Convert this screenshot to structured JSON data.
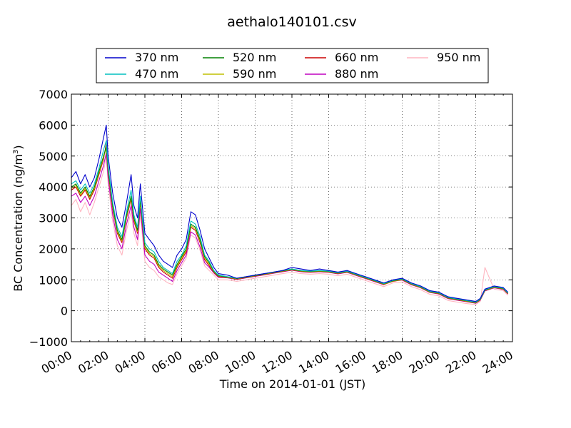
{
  "chart_data": {
    "type": "line",
    "title": "aethalo140101.csv",
    "xlabel": "Time on 2014-01-01 (JST)",
    "ylabel_main": "BC Concentration (ng/m",
    "ylabel_sup": "3",
    "ylabel_close": ")",
    "ylim": [
      -1000,
      7000
    ],
    "xlim_hours": [
      0,
      24
    ],
    "yticks": [
      "−1000",
      "0",
      "1000",
      "2000",
      "3000",
      "4000",
      "5000",
      "6000",
      "7000"
    ],
    "xticks": [
      "00:00",
      "02:00",
      "04:00",
      "06:00",
      "08:00",
      "10:00",
      "12:00",
      "14:00",
      "16:00",
      "18:00",
      "20:00",
      "22:00",
      "24:00"
    ],
    "grid": true,
    "legend_position": "top",
    "hours": [
      0,
      0.25,
      0.5,
      0.75,
      1.0,
      1.25,
      1.5,
      1.75,
      1.9,
      2.0,
      2.25,
      2.5,
      2.75,
      3.0,
      3.25,
      3.4,
      3.6,
      3.75,
      4.0,
      4.25,
      4.5,
      4.75,
      5.0,
      5.25,
      5.5,
      5.75,
      6.0,
      6.25,
      6.5,
      6.75,
      7.0,
      7.25,
      7.5,
      7.75,
      8.0,
      8.5,
      9.0,
      9.5,
      10.0,
      10.5,
      11.0,
      11.5,
      12.0,
      12.5,
      13.0,
      13.5,
      14.0,
      14.5,
      15.0,
      15.5,
      16.0,
      16.5,
      17.0,
      17.5,
      18.0,
      18.5,
      19.0,
      19.5,
      20.0,
      20.5,
      21.0,
      21.5,
      22.0,
      22.25,
      22.5,
      23.0,
      23.5,
      23.75
    ],
    "series": [
      {
        "name": "370 nm",
        "color": "#0000cc",
        "values": [
          4300,
          4500,
          4100,
          4400,
          4000,
          4300,
          4900,
          5600,
          6000,
          5000,
          3800,
          3000,
          2700,
          3500,
          4400,
          3400,
          3000,
          4100,
          2500,
          2300,
          2100,
          1800,
          1600,
          1500,
          1400,
          1800,
          2000,
          2300,
          3200,
          3100,
          2600,
          2000,
          1700,
          1400,
          1200,
          1150,
          1050,
          1100,
          1150,
          1200,
          1250,
          1300,
          1400,
          1350,
          1300,
          1350,
          1300,
          1250,
          1300,
          1200,
          1100,
          1000,
          900,
          1000,
          1050,
          900,
          800,
          650,
          600,
          450,
          400,
          350,
          300,
          400,
          700,
          800,
          750,
          600
        ]
      },
      {
        "name": "470 nm",
        "color": "#00bfbf",
        "values": [
          4100,
          4200,
          3900,
          4100,
          3800,
          4100,
          4600,
          5200,
          5500,
          4700,
          3500,
          2700,
          2400,
          3200,
          3900,
          3100,
          2700,
          3700,
          2200,
          2000,
          1900,
          1600,
          1400,
          1300,
          1200,
          1600,
          1800,
          2100,
          2900,
          2800,
          2400,
          1800,
          1600,
          1300,
          1150,
          1100,
          1050,
          1100,
          1150,
          1200,
          1250,
          1300,
          1350,
          1300,
          1280,
          1300,
          1280,
          1230,
          1280,
          1180,
          1080,
          980,
          880,
          980,
          1030,
          880,
          780,
          630,
          580,
          430,
          380,
          330,
          280,
          380,
          680,
          780,
          730,
          580
        ]
      },
      {
        "name": "520 nm",
        "color": "#008000",
        "values": [
          4000,
          4100,
          3800,
          4000,
          3700,
          4000,
          4500,
          5000,
          5300,
          4600,
          3400,
          2600,
          2300,
          3100,
          3700,
          3000,
          2600,
          3600,
          2100,
          1900,
          1800,
          1500,
          1350,
          1250,
          1150,
          1500,
          1750,
          2000,
          2800,
          2700,
          2300,
          1750,
          1550,
          1280,
          1130,
          1090,
          1040,
          1090,
          1140,
          1190,
          1240,
          1290,
          1340,
          1290,
          1270,
          1290,
          1270,
          1220,
          1270,
          1170,
          1070,
          970,
          870,
          970,
          1020,
          870,
          770,
          620,
          570,
          420,
          370,
          320,
          270,
          370,
          670,
          770,
          720,
          570
        ]
      },
      {
        "name": "590 nm",
        "color": "#bfbf00",
        "values": [
          3950,
          4050,
          3750,
          3950,
          3650,
          3950,
          4450,
          4950,
          5250,
          4550,
          3350,
          2550,
          2250,
          3050,
          3650,
          2950,
          2550,
          3550,
          2050,
          1850,
          1750,
          1450,
          1300,
          1200,
          1100,
          1450,
          1700,
          1950,
          2750,
          2650,
          2250,
          1700,
          1500,
          1260,
          1120,
          1080,
          1030,
          1080,
          1130,
          1180,
          1230,
          1280,
          1330,
          1280,
          1260,
          1280,
          1260,
          1210,
          1260,
          1160,
          1060,
          960,
          860,
          960,
          1010,
          860,
          760,
          610,
          560,
          410,
          360,
          310,
          260,
          360,
          660,
          760,
          710,
          560
        ]
      },
      {
        "name": "660 nm",
        "color": "#cc0000",
        "values": [
          3900,
          4000,
          3700,
          3900,
          3600,
          3900,
          4400,
          4900,
          5400,
          4500,
          3300,
          2500,
          2200,
          3000,
          3600,
          2900,
          2500,
          3500,
          2000,
          1800,
          1700,
          1400,
          1250,
          1150,
          1050,
          1400,
          1650,
          1900,
          2700,
          2600,
          2200,
          1650,
          1450,
          1240,
          1100,
          1070,
          1020,
          1070,
          1120,
          1170,
          1220,
          1270,
          1320,
          1270,
          1250,
          1270,
          1250,
          1200,
          1250,
          1150,
          1050,
          950,
          850,
          950,
          1000,
          850,
          750,
          600,
          550,
          400,
          350,
          300,
          250,
          350,
          650,
          750,
          700,
          550
        ]
      },
      {
        "name": "880 nm",
        "color": "#bf00bf",
        "values": [
          3700,
          3800,
          3500,
          3700,
          3400,
          3700,
          4200,
          4700,
          5100,
          4300,
          3100,
          2300,
          2000,
          2800,
          3400,
          2700,
          2300,
          3300,
          1800,
          1600,
          1500,
          1250,
          1150,
          1050,
          950,
          1300,
          1550,
          1800,
          2550,
          2450,
          2050,
          1550,
          1400,
          1220,
          1080,
          1060,
          1010,
          1060,
          1110,
          1160,
          1210,
          1260,
          1310,
          1260,
          1240,
          1260,
          1240,
          1190,
          1240,
          1140,
          1040,
          940,
          840,
          1000,
          990,
          840,
          740,
          590,
          540,
          390,
          340,
          290,
          240,
          340,
          640,
          740,
          690,
          540
        ]
      },
      {
        "name": "950 nm",
        "color": "#ffb6c1",
        "values": [
          3400,
          3600,
          3200,
          3500,
          3100,
          3500,
          4000,
          4500,
          5000,
          4100,
          2900,
          2100,
          1800,
          2600,
          3200,
          2500,
          2100,
          3100,
          1600,
          1400,
          1300,
          1100,
          1000,
          900,
          850,
          1200,
          1450,
          1700,
          2450,
          2350,
          1950,
          1450,
          1300,
          1150,
          1000,
          1000,
          950,
          1000,
          1050,
          1100,
          1150,
          1200,
          1250,
          1200,
          1180,
          1200,
          1180,
          1130,
          1180,
          1080,
          980,
          880,
          780,
          900,
          930,
          780,
          680,
          530,
          480,
          330,
          280,
          230,
          200,
          300,
          1400,
          700,
          650,
          500
        ]
      }
    ]
  }
}
